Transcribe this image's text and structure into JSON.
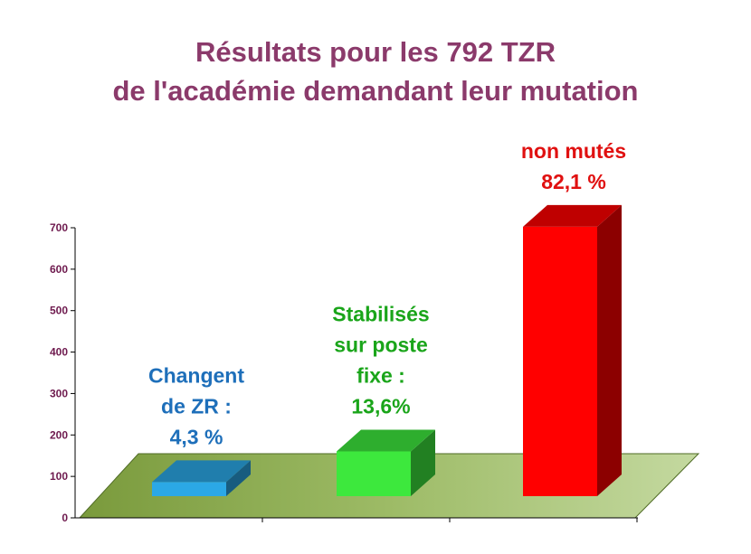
{
  "chart_data": {
    "type": "bar",
    "title_lines": [
      "Résultats pour les 792 TZR",
      "de l'académie demandant leur mutation"
    ],
    "xlabel": "",
    "ylabel": "",
    "ylim": [
      0,
      700
    ],
    "yticks": [
      "0",
      "100",
      "200",
      "300",
      "400",
      "500",
      "600",
      "700"
    ],
    "bars": [
      {
        "value": 34,
        "label_lines": [
          "Changent",
          "de ZR :",
          "4,3 %"
        ],
        "color": "#2ba8e6",
        "text_color": "#1e6fba"
      },
      {
        "value": 108,
        "label_lines": [
          "Stabilisés",
          "sur poste",
          "fixe :",
          "13,6%"
        ],
        "color": "#3de83d",
        "text_color": "#1aa51a"
      },
      {
        "value": 650,
        "label_lines": [
          "non mutés",
          "82,1 %"
        ],
        "color": "#ff0000",
        "text_color": "#e01010"
      }
    ]
  }
}
